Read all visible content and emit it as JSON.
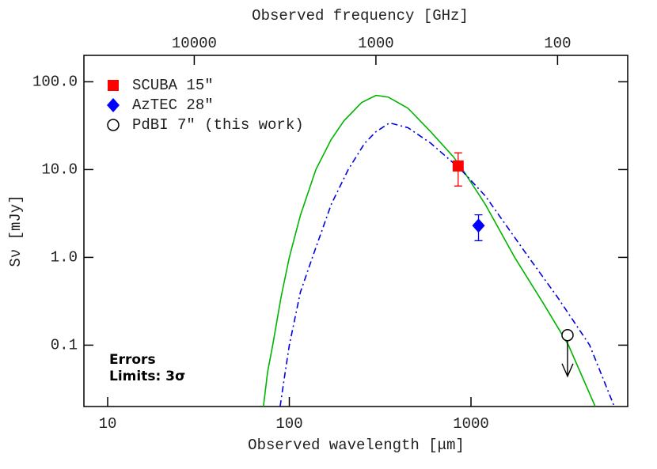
{
  "chart_data": {
    "type": "sed",
    "title_top_axis": "Observed frequency [GHz]",
    "xlabel": "Observed wavelength [μm]",
    "ylabel": "Sν [mJy]",
    "xscale": "log",
    "yscale": "log",
    "xlim": [
      7.4,
      7290
    ],
    "xticks": [
      10,
      100,
      1000
    ],
    "x2lim": [
      40500,
      41.1
    ],
    "x2ticks": [
      10000,
      1000,
      100
    ],
    "ylim": [
      0.02,
      200
    ],
    "yticks": [
      {
        "value": 100,
        "label": "100.0"
      },
      {
        "value": 10,
        "label": "10.0"
      },
      {
        "value": 1,
        "label": "1.0"
      },
      0.1
    ],
    "annotations": [
      "Errors",
      "Limits: 3σ"
    ],
    "series": [
      {
        "kind": "curve",
        "color": "#00b400",
        "dash": "solid",
        "x": [
          72,
          76,
          81,
          90,
          100,
          115,
          140,
          170,
          200,
          250,
          300,
          350,
          450,
          600,
          800,
          900,
          1200,
          1740,
          2500,
          3440,
          4830
        ],
        "values": [
          0.02,
          0.05,
          0.1,
          0.35,
          1.0,
          3.0,
          10,
          22,
          36,
          58,
          70,
          67,
          50,
          27,
          14,
          10,
          4.0,
          1.0,
          0.3,
          0.1,
          0.02
        ]
      },
      {
        "kind": "curve",
        "color": "#0000e0",
        "dash": "dashdot",
        "x": [
          89,
          95,
          100,
          115,
          134,
          170,
          211,
          260,
          300,
          356,
          450,
          600,
          880,
          1200,
          2080,
          3000,
          4500,
          6150
        ],
        "values": [
          0.02,
          0.05,
          0.1,
          0.4,
          1.0,
          4.0,
          10,
          20,
          27,
          34,
          30,
          20,
          10,
          5.0,
          1.0,
          0.35,
          0.1,
          0.02
        ]
      },
      {
        "kind": "point",
        "name": "SCUBA 15″",
        "color": "#ff0000",
        "marker": "square",
        "x": [
          850
        ],
        "values": [
          11
        ],
        "errors": [
          4.5
        ]
      },
      {
        "kind": "point",
        "name": "AzTEC 28″",
        "color": "#0000ff",
        "marker": "diamond",
        "x": [
          1100
        ],
        "values": [
          2.3
        ],
        "errors": [
          0.75
        ]
      },
      {
        "kind": "point",
        "name": "PdBI 7″ (this work)",
        "color": "#000000",
        "marker": "circle",
        "x": [
          3400
        ],
        "values": [
          0.13
        ],
        "upper_limit": true
      }
    ]
  }
}
